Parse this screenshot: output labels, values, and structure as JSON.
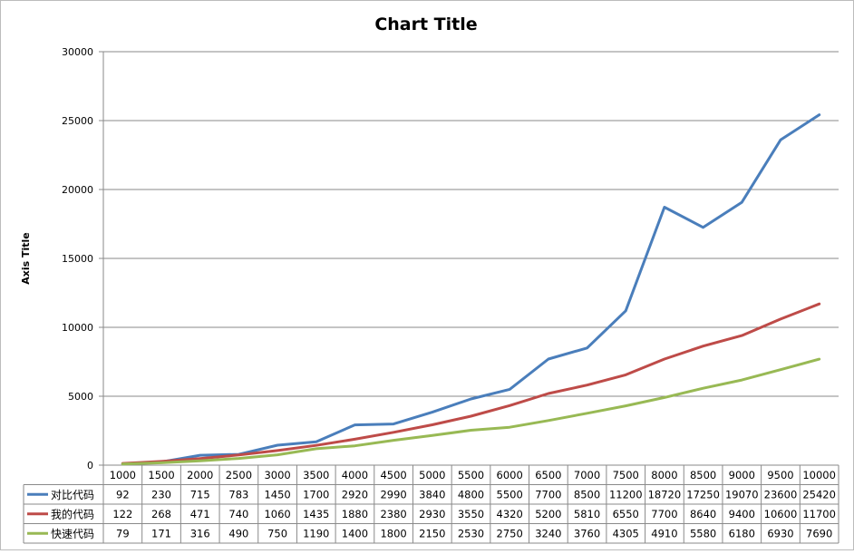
{
  "chart_data": {
    "type": "line",
    "title": "Chart Title",
    "xlabel": "",
    "ylabel": "Axis Title",
    "ylim": [
      0,
      30000
    ],
    "yticks": [
      0,
      5000,
      10000,
      15000,
      20000,
      25000,
      30000
    ],
    "grid": true,
    "legend": "data-table-left",
    "categories": [
      "1000",
      "1500",
      "2000",
      "2500",
      "3000",
      "3500",
      "4000",
      "4500",
      "5000",
      "5500",
      "6000",
      "6500",
      "7000",
      "7500",
      "8000",
      "8500",
      "9000",
      "9500",
      "10000"
    ],
    "series": [
      {
        "name": "对比代码",
        "color": "#4a7ebb",
        "values": [
          92,
          230,
          715,
          783,
          1450,
          1700,
          2920,
          2990,
          3840,
          4800,
          5500,
          7700,
          8500,
          11200,
          18720,
          17250,
          19070,
          23600,
          25420
        ]
      },
      {
        "name": "我的代码",
        "color": "#be4b48",
        "values": [
          122,
          268,
          471,
          740,
          1060,
          1435,
          1880,
          2380,
          2930,
          3550,
          4320,
          5200,
          5810,
          6550,
          7700,
          8640,
          9400,
          10600,
          11700
        ]
      },
      {
        "name": "快速代码",
        "color": "#98b954",
        "values": [
          79,
          171,
          316,
          490,
          750,
          1190,
          1400,
          1800,
          2150,
          2530,
          2750,
          3240,
          3760,
          4305,
          4910,
          5580,
          6180,
          6930,
          7690
        ]
      }
    ]
  }
}
